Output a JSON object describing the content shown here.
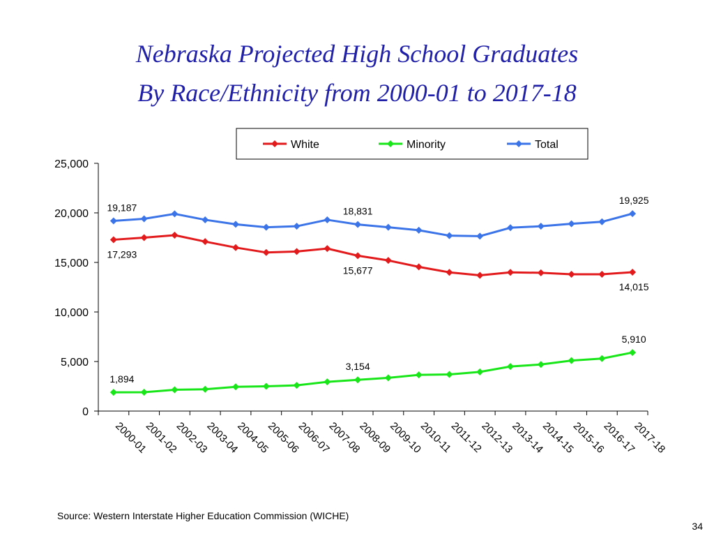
{
  "slide": {
    "title_line_1": "Nebraska Projected High School Graduates",
    "title_line_2": "By Race/Ethnicity from 2000-01 to 2017-18",
    "source": "Source:  Western Interstate Higher Education Commission (WICHE)",
    "page_number": "34"
  },
  "chart_data": {
    "type": "line",
    "title": "",
    "xlabel": "",
    "ylabel": "",
    "ylim": [
      0,
      25000
    ],
    "yticks": [
      0,
      5000,
      10000,
      15000,
      20000,
      25000
    ],
    "ytick_labels": [
      "0",
      "5,000",
      "10,000",
      "15,000",
      "20,000",
      "25,000"
    ],
    "grid": false,
    "legend_position": "top-right",
    "categories": [
      "2000-01",
      "2001-02",
      "2002-03",
      "2003-04",
      "2004-05",
      "2005-06",
      "2006-07",
      "2007-08",
      "2008-09",
      "2009-10",
      "2010-11",
      "2011-12",
      "2012-13",
      "2013-14",
      "2014-15",
      "2015-16",
      "2016-17",
      "2017-18"
    ],
    "series": [
      {
        "name": "White",
        "color": "#e31a1c",
        "values": [
          17293,
          17500,
          17750,
          17100,
          16500,
          16000,
          16100,
          16400,
          15677,
          15200,
          14550,
          14000,
          13700,
          14000,
          13950,
          13800,
          13800,
          14015
        ]
      },
      {
        "name": "Minority",
        "color": "#19e619",
        "values": [
          1894,
          1900,
          2150,
          2200,
          2450,
          2500,
          2600,
          2950,
          3154,
          3350,
          3650,
          3700,
          3950,
          4500,
          4700,
          5100,
          5300,
          5910
        ]
      },
      {
        "name": "Total",
        "color": "#3b73e8",
        "values": [
          19187,
          19400,
          19900,
          19300,
          18850,
          18550,
          18650,
          19300,
          18831,
          18550,
          18250,
          17700,
          17650,
          18500,
          18650,
          18900,
          19100,
          19925
        ]
      }
    ],
    "annotations": [
      {
        "series": "Total",
        "index": 0,
        "text": "19,187",
        "position": "above"
      },
      {
        "series": "Total",
        "index": 8,
        "text": "18,831",
        "position": "above"
      },
      {
        "series": "Total",
        "index": 17,
        "text": "19,925",
        "position": "above"
      },
      {
        "series": "White",
        "index": 0,
        "text": "17,293",
        "position": "below"
      },
      {
        "series": "White",
        "index": 8,
        "text": "15,677",
        "position": "below"
      },
      {
        "series": "White",
        "index": 17,
        "text": "14,015",
        "position": "below"
      },
      {
        "series": "Minority",
        "index": 0,
        "text": "1,894",
        "position": "above"
      },
      {
        "series": "Minority",
        "index": 8,
        "text": "3,154",
        "position": "above"
      },
      {
        "series": "Minority",
        "index": 17,
        "text": "5,910",
        "position": "above"
      }
    ]
  }
}
